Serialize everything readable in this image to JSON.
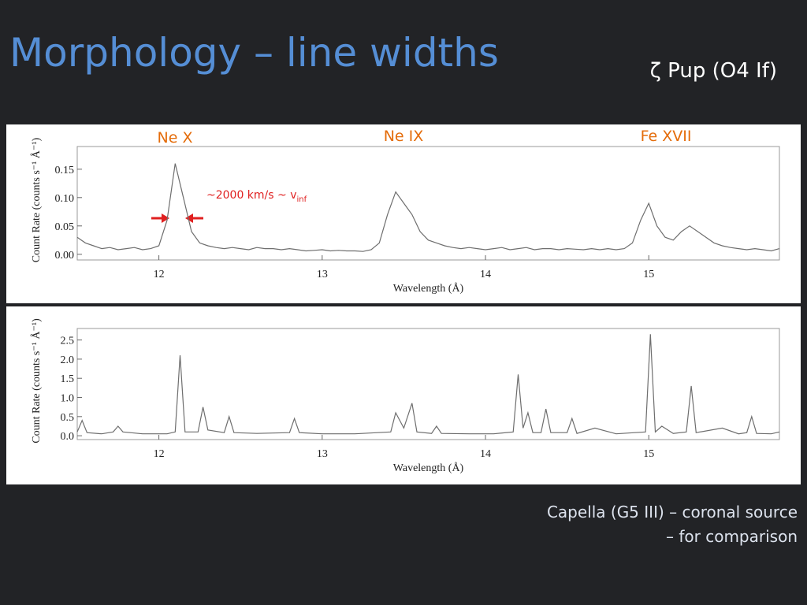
{
  "title": "Morphology – line widths",
  "subtitle": "ζ Pup (O4 If)",
  "caption": [
    "Capella (G5 III) – coronal source",
    "– for comparison"
  ],
  "chart_data": [
    {
      "type": "line",
      "annotations": [
        "Ne X",
        "Ne IX",
        "Fe XVII"
      ],
      "width_label": "~2000 km/s ~ v",
      "width_label_sub": "inf",
      "ylabel": "Count Rate (counts s⁻¹ Å⁻¹)",
      "xlabel": "Wavelength (Å)",
      "xlim": [
        11.5,
        15.8
      ],
      "ylim": [
        -0.01,
        0.19
      ],
      "xticks": [
        12,
        13,
        14,
        15
      ],
      "yticks": [
        {
          "value": 0,
          "label": "0.00"
        },
        0.05,
        {
          "value": 0.1,
          "label": "0.10"
        },
        0.15
      ],
      "color": "#6e6e6e",
      "x": [
        11.5,
        11.55,
        11.6,
        11.65,
        11.7,
        11.75,
        11.8,
        11.85,
        11.9,
        11.95,
        12.0,
        12.05,
        12.1,
        12.15,
        12.2,
        12.25,
        12.3,
        12.35,
        12.4,
        12.45,
        12.5,
        12.55,
        12.6,
        12.65,
        12.7,
        12.75,
        12.8,
        12.85,
        12.9,
        12.95,
        13.0,
        13.05,
        13.1,
        13.15,
        13.2,
        13.25,
        13.3,
        13.35,
        13.4,
        13.45,
        13.5,
        13.55,
        13.6,
        13.65,
        13.7,
        13.75,
        13.8,
        13.85,
        13.9,
        13.95,
        14.0,
        14.05,
        14.1,
        14.15,
        14.2,
        14.25,
        14.3,
        14.35,
        14.4,
        14.45,
        14.5,
        14.55,
        14.6,
        14.65,
        14.7,
        14.75,
        14.8,
        14.85,
        14.9,
        14.95,
        15.0,
        15.05,
        15.1,
        15.15,
        15.2,
        15.25,
        15.3,
        15.35,
        15.4,
        15.45,
        15.5,
        15.55,
        15.6,
        15.65,
        15.7,
        15.75,
        15.8
      ],
      "values": [
        0.03,
        0.02,
        0.015,
        0.01,
        0.012,
        0.008,
        0.01,
        0.012,
        0.008,
        0.01,
        0.015,
        0.06,
        0.16,
        0.1,
        0.04,
        0.02,
        0.015,
        0.012,
        0.01,
        0.012,
        0.01,
        0.008,
        0.012,
        0.01,
        0.01,
        0.008,
        0.01,
        0.008,
        0.006,
        0.007,
        0.008,
        0.006,
        0.007,
        0.006,
        0.006,
        0.005,
        0.008,
        0.02,
        0.07,
        0.11,
        0.09,
        0.07,
        0.04,
        0.025,
        0.02,
        0.015,
        0.012,
        0.01,
        0.012,
        0.01,
        0.008,
        0.01,
        0.012,
        0.008,
        0.01,
        0.012,
        0.008,
        0.01,
        0.01,
        0.008,
        0.01,
        0.009,
        0.008,
        0.01,
        0.008,
        0.01,
        0.008,
        0.01,
        0.02,
        0.06,
        0.09,
        0.05,
        0.03,
        0.025,
        0.04,
        0.05,
        0.04,
        0.03,
        0.02,
        0.015,
        0.012,
        0.01,
        0.008,
        0.01,
        0.008,
        0.006,
        0.01
      ]
    },
    {
      "type": "line",
      "ylabel": "Count Rate (counts s⁻¹ Å⁻¹)",
      "xlabel": "Wavelength (Å)",
      "xlim": [
        11.5,
        15.8
      ],
      "ylim": [
        -0.1,
        2.8
      ],
      "xticks": [
        12,
        13,
        14,
        15
      ],
      "yticks": [
        {
          "value": 0,
          "label": "0.0"
        },
        0.5,
        {
          "value": 1,
          "label": "1.0"
        },
        1.5,
        {
          "value": 2,
          "label": "2.0"
        },
        2.5
      ],
      "color": "#6e6e6e",
      "x": [
        11.5,
        11.53,
        11.56,
        11.65,
        11.72,
        11.75,
        11.78,
        11.9,
        12.05,
        12.1,
        12.13,
        12.16,
        12.24,
        12.27,
        12.3,
        12.4,
        12.43,
        12.46,
        12.6,
        12.8,
        12.83,
        12.86,
        13.0,
        13.2,
        13.42,
        13.45,
        13.5,
        13.55,
        13.58,
        13.67,
        13.7,
        13.73,
        13.9,
        14.05,
        14.17,
        14.2,
        14.23,
        14.26,
        14.29,
        14.34,
        14.37,
        14.4,
        14.5,
        14.53,
        14.56,
        14.67,
        14.8,
        14.98,
        15.01,
        15.04,
        15.08,
        15.15,
        15.23,
        15.26,
        15.29,
        15.45,
        15.55,
        15.6,
        15.63,
        15.66,
        15.75,
        15.8
      ],
      "values": [
        0.1,
        0.4,
        0.08,
        0.05,
        0.1,
        0.25,
        0.1,
        0.05,
        0.05,
        0.1,
        2.1,
        0.1,
        0.1,
        0.75,
        0.15,
        0.08,
        0.5,
        0.08,
        0.06,
        0.08,
        0.45,
        0.08,
        0.05,
        0.05,
        0.1,
        0.6,
        0.2,
        0.85,
        0.1,
        0.06,
        0.25,
        0.06,
        0.05,
        0.05,
        0.1,
        1.6,
        0.2,
        0.6,
        0.08,
        0.08,
        0.7,
        0.08,
        0.08,
        0.45,
        0.06,
        0.2,
        0.05,
        0.1,
        2.65,
        0.1,
        0.25,
        0.06,
        0.1,
        1.3,
        0.08,
        0.2,
        0.05,
        0.08,
        0.5,
        0.06,
        0.05,
        0.1
      ]
    }
  ]
}
